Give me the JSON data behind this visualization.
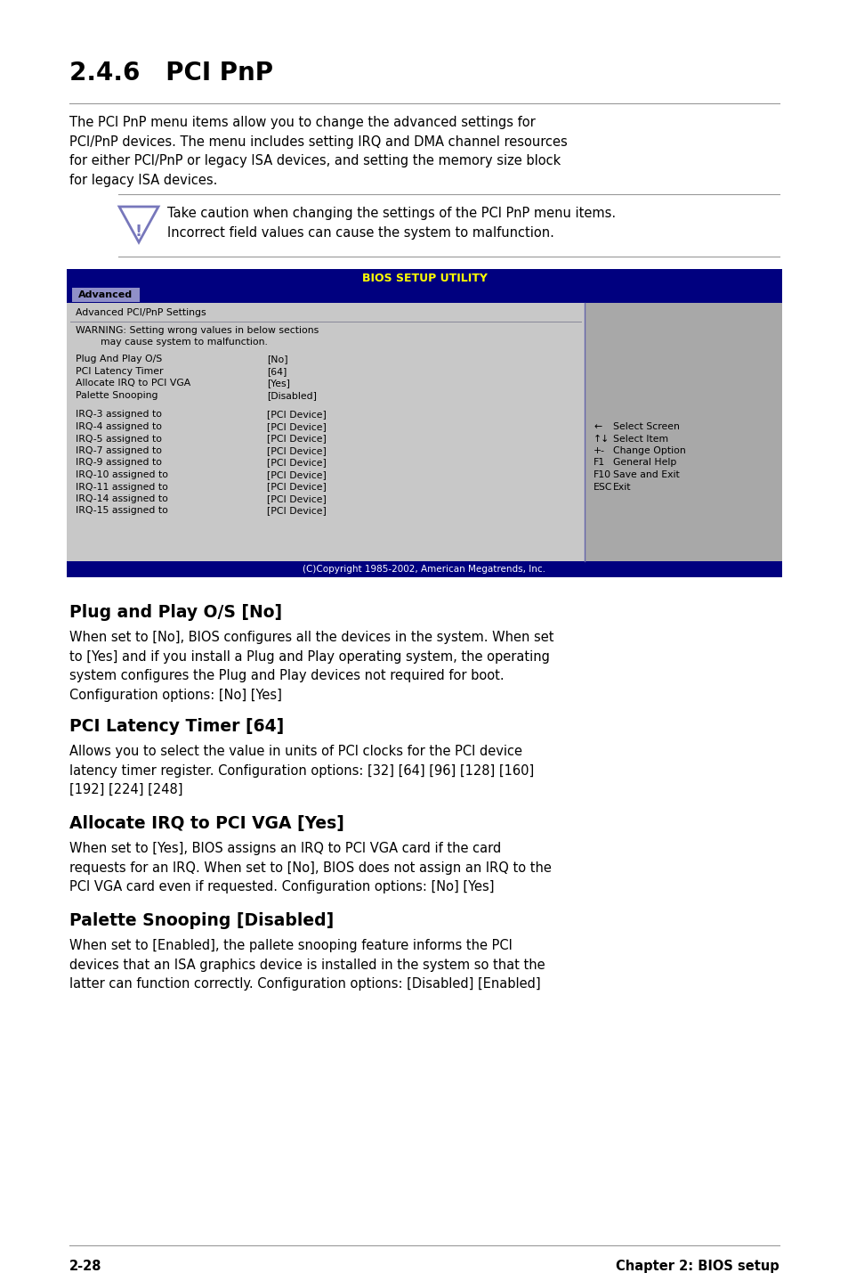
{
  "bg_color": "#ffffff",
  "title": "2.4.6   PCI PnP",
  "intro_text": "The PCI PnP menu items allow you to change the advanced settings for\nPCI/PnP devices. The menu includes setting IRQ and DMA channel resources\nfor either PCI/PnP or legacy ISA devices, and setting the memory size block\nfor legacy ISA devices.",
  "caution_text": "Take caution when changing the settings of the PCI PnP menu items.\nIncorrect field values can cause the system to malfunction.",
  "bios_title": "BIOS SETUP UTILITY",
  "bios_tab": "Advanced",
  "bios_header": "Advanced PCI/PnP Settings",
  "bios_warning_line1": "WARNING: Setting wrong values in below sections",
  "bios_warning_line2": "        may cause system to malfunction.",
  "bios_items": [
    [
      "Plug And Play O/S",
      "[No]"
    ],
    [
      "PCI Latency Timer",
      "[64]"
    ],
    [
      "Allocate IRQ to PCI VGA",
      "[Yes]"
    ],
    [
      "Palette Snooping",
      "[Disabled]"
    ]
  ],
  "bios_irqs": [
    [
      "IRQ-3 assigned to",
      "[PCI Device]"
    ],
    [
      "IRQ-4 assigned to",
      "[PCI Device]"
    ],
    [
      "IRQ-5 assigned to",
      "[PCI Device]"
    ],
    [
      "IRQ-7 assigned to",
      "[PCI Device]"
    ],
    [
      "IRQ-9 assigned to",
      "[PCI Device]"
    ],
    [
      "IRQ-10 assigned to",
      "[PCI Device]"
    ],
    [
      "IRQ-11 assigned to",
      "[PCI Device]"
    ],
    [
      "IRQ-14 assigned to",
      "[PCI Device]"
    ],
    [
      "IRQ-15 assigned to",
      "[PCI Device]"
    ]
  ],
  "bios_legend": [
    [
      "←",
      "Select Screen"
    ],
    [
      "↑↓",
      "Select Item"
    ],
    [
      "+-",
      "Change Option"
    ],
    [
      "F1",
      "General Help"
    ],
    [
      "F10",
      "Save and Exit"
    ],
    [
      "ESC",
      "Exit"
    ]
  ],
  "bios_copyright": "(C)Copyright 1985-2002, American Megatrends, Inc.",
  "sections": [
    {
      "heading": "Plug and Play O/S [No]",
      "body": "When set to [No], BIOS configures all the devices in the system. When set\nto [Yes] and if you install a Plug and Play operating system, the operating\nsystem configures the Plug and Play devices not required for boot.\nConfiguration options: [No] [Yes]"
    },
    {
      "heading": "PCI Latency Timer [64]",
      "body": "Allows you to select the value in units of PCI clocks for the PCI device\nlatency timer register. Configuration options: [32] [64] [96] [128] [160]\n[192] [224] [248]"
    },
    {
      "heading": "Allocate IRQ to PCI VGA [Yes]",
      "body": "When set to [Yes], BIOS assigns an IRQ to PCI VGA card if the card\nrequests for an IRQ. When set to [No], BIOS does not assign an IRQ to the\nPCI VGA card even if requested. Configuration options: [No] [Yes]"
    },
    {
      "heading": "Palette Snooping [Disabled]",
      "body": "When set to [Enabled], the pallete snooping feature informs the PCI\ndevices that an ISA graphics device is installed in the system so that the\nlatter can function correctly. Configuration options: [Disabled] [Enabled]"
    }
  ],
  "footer_left": "2-28",
  "footer_right": "Chapter 2: BIOS setup",
  "dark_blue": "#00007f",
  "bios_left_bg": "#c8c8c8",
  "bios_right_bg": "#a8a8a8",
  "bios_tab_bg": "#9090c0",
  "line_color": "#999999"
}
